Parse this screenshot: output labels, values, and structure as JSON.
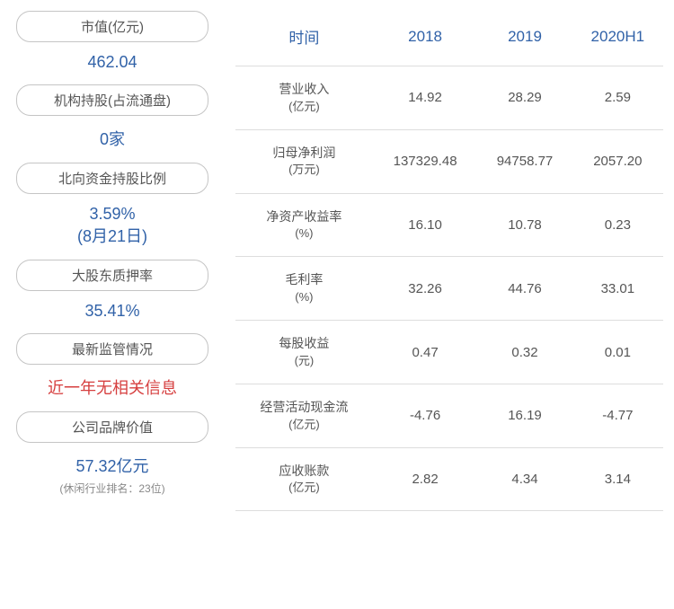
{
  "left_panel": {
    "metrics": [
      {
        "label": "市值(亿元)",
        "value": "462.04",
        "value_color": "blue",
        "subtext": ""
      },
      {
        "label": "机构持股(占流通盘)",
        "value": "0家",
        "value_color": "blue",
        "subtext": ""
      },
      {
        "label": "北向资金持股比例",
        "value": "3.59%\n(8月21日)",
        "value_color": "blue",
        "subtext": ""
      },
      {
        "label": "大股东质押率",
        "value": "35.41%",
        "value_color": "blue",
        "subtext": ""
      },
      {
        "label": "最新监管情况",
        "value": "近一年无相关信息",
        "value_color": "red",
        "subtext": ""
      },
      {
        "label": "公司品牌价值",
        "value": "57.32亿元",
        "value_color": "blue",
        "subtext": "(休闲行业排名：23位)"
      }
    ]
  },
  "table": {
    "header_color": "#3162a8",
    "border_color": "#dddddd",
    "text_color": "#555555",
    "columns": [
      "时间",
      "2018",
      "2019",
      "2020H1"
    ],
    "rows": [
      {
        "label_main": "营业收入",
        "label_unit": "(亿元)",
        "values": [
          "14.92",
          "28.29",
          "2.59"
        ]
      },
      {
        "label_main": "归母净利润",
        "label_unit": "(万元)",
        "values": [
          "137329.48",
          "94758.77",
          "2057.20"
        ]
      },
      {
        "label_main": "净资产收益率",
        "label_unit": "(%)",
        "values": [
          "16.10",
          "10.78",
          "0.23"
        ]
      },
      {
        "label_main": "毛利率",
        "label_unit": "(%)",
        "values": [
          "32.26",
          "44.76",
          "33.01"
        ]
      },
      {
        "label_main": "每股收益",
        "label_unit": "(元)",
        "values": [
          "0.47",
          "0.32",
          "0.01"
        ]
      },
      {
        "label_main": "经营活动现金流",
        "label_unit": "(亿元)",
        "values": [
          "-4.76",
          "16.19",
          "-4.77"
        ]
      },
      {
        "label_main": "应收账款",
        "label_unit": "(亿元)",
        "values": [
          "2.82",
          "4.34",
          "3.14"
        ]
      }
    ]
  },
  "colors": {
    "blue": "#3162a8",
    "red": "#d63f3f",
    "gray_text": "#555555",
    "gray_border": "#c5c5c5",
    "light_border": "#dddddd",
    "subtext": "#888888"
  }
}
